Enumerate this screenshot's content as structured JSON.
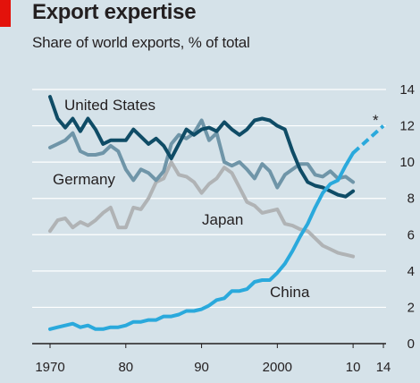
{
  "title": "Export expertise",
  "subtitle": "Share of world exports, % of total",
  "colors": {
    "background": "#d5e2e9",
    "accent": "#e3120b",
    "united_states": "#0f4c66",
    "germany": "#6f95a8",
    "japan": "#b0b3b5",
    "china": "#2aa9dc",
    "gridline": "#ffffff"
  },
  "chart_data": {
    "type": "line",
    "title": "Export expertise",
    "subtitle": "Share of world exports, % of total",
    "xlim": [
      1970,
      2015
    ],
    "ylim": [
      0,
      14
    ],
    "grid": true,
    "y_axis_position": "right",
    "x_ticks": [
      1970,
      1980,
      1990,
      2000,
      2010,
      2014
    ],
    "x_tick_labels": [
      "1970",
      "80",
      "90",
      "2000",
      "10",
      "14"
    ],
    "y_ticks": [
      0,
      2,
      4,
      6,
      8,
      10,
      12,
      14
    ],
    "y_tick_labels": [
      "0",
      "2",
      "4",
      "6",
      "8",
      "10",
      "12",
      "14"
    ],
    "forecast_marker": "*",
    "series": [
      {
        "name": "United States",
        "x": [
          1970,
          1971,
          1972,
          1973,
          1974,
          1975,
          1976,
          1977,
          1978,
          1979,
          1980,
          1981,
          1982,
          1983,
          1984,
          1985,
          1986,
          1987,
          1988,
          1989,
          1990,
          1991,
          1992,
          1993,
          1994,
          1995,
          1996,
          1997,
          1998,
          1999,
          2000,
          2001,
          2002,
          2003,
          2004,
          2005,
          2006,
          2007,
          2008,
          2009,
          2010
        ],
        "values": [
          13.6,
          12.4,
          11.9,
          12.4,
          11.7,
          12.4,
          11.8,
          11.0,
          11.2,
          11.2,
          11.2,
          11.8,
          11.4,
          11.0,
          11.3,
          10.9,
          10.2,
          11.0,
          11.8,
          11.5,
          11.8,
          11.9,
          11.7,
          12.2,
          11.8,
          11.5,
          11.8,
          12.3,
          12.4,
          12.3,
          12.0,
          11.8,
          10.6,
          9.6,
          8.9,
          8.7,
          8.6,
          8.4,
          8.2,
          8.1,
          8.4
        ]
      },
      {
        "name": "Germany",
        "x": [
          1970,
          1971,
          1972,
          1973,
          1974,
          1975,
          1976,
          1977,
          1978,
          1979,
          1980,
          1981,
          1982,
          1983,
          1984,
          1985,
          1986,
          1987,
          1988,
          1989,
          1990,
          1991,
          1992,
          1993,
          1994,
          1995,
          1996,
          1997,
          1998,
          1999,
          2000,
          2001,
          2002,
          2003,
          2004,
          2005,
          2006,
          2007,
          2008,
          2009,
          2010
        ],
        "values": [
          10.8,
          11.0,
          11.2,
          11.6,
          10.6,
          10.4,
          10.4,
          10.5,
          10.9,
          10.6,
          9.6,
          9.0,
          9.6,
          9.4,
          9.0,
          9.5,
          11.0,
          11.5,
          11.3,
          11.6,
          12.3,
          11.2,
          11.6,
          10.0,
          9.8,
          10.0,
          9.6,
          9.1,
          9.9,
          9.5,
          8.6,
          9.3,
          9.6,
          9.9,
          9.9,
          9.3,
          9.2,
          9.5,
          9.1,
          9.2,
          8.9
        ]
      },
      {
        "name": "Japan",
        "x": [
          1970,
          1971,
          1972,
          1973,
          1974,
          1975,
          1976,
          1977,
          1978,
          1979,
          1980,
          1981,
          1982,
          1983,
          1984,
          1985,
          1986,
          1987,
          1988,
          1989,
          1990,
          1991,
          1992,
          1993,
          1994,
          1995,
          1996,
          1997,
          1998,
          1999,
          2000,
          2001,
          2002,
          2003,
          2004,
          2005,
          2006,
          2007,
          2008,
          2009,
          2010
        ],
        "values": [
          6.2,
          6.8,
          6.9,
          6.4,
          6.7,
          6.5,
          6.8,
          7.2,
          7.5,
          6.4,
          6.4,
          7.5,
          7.4,
          8.0,
          8.9,
          9.1,
          10.0,
          9.3,
          9.2,
          8.9,
          8.3,
          8.8,
          9.1,
          9.7,
          9.4,
          8.6,
          7.8,
          7.6,
          7.2,
          7.3,
          7.4,
          6.6,
          6.5,
          6.3,
          6.2,
          5.8,
          5.4,
          5.2,
          5.0,
          4.9,
          4.8
        ]
      },
      {
        "name": "China",
        "x": [
          1970,
          1971,
          1972,
          1973,
          1974,
          1975,
          1976,
          1977,
          1978,
          1979,
          1980,
          1981,
          1982,
          1983,
          1984,
          1985,
          1986,
          1987,
          1988,
          1989,
          1990,
          1991,
          1992,
          1993,
          1994,
          1995,
          1996,
          1997,
          1998,
          1999,
          2000,
          2001,
          2002,
          2003,
          2004,
          2005,
          2006,
          2007,
          2008,
          2009,
          2010
        ],
        "values": [
          0.8,
          0.9,
          1.0,
          1.1,
          0.9,
          1.0,
          0.8,
          0.8,
          0.9,
          0.9,
          1.0,
          1.2,
          1.2,
          1.3,
          1.3,
          1.5,
          1.5,
          1.6,
          1.8,
          1.8,
          1.9,
          2.1,
          2.4,
          2.5,
          2.9,
          2.9,
          3.0,
          3.4,
          3.5,
          3.5,
          3.9,
          4.4,
          5.1,
          5.9,
          6.6,
          7.5,
          8.3,
          8.8,
          9.0,
          9.8,
          10.5
        ]
      },
      {
        "name": "China forecast",
        "x": [
          2010,
          2014
        ],
        "values": [
          10.5,
          12.0
        ],
        "dashed": true
      }
    ]
  }
}
